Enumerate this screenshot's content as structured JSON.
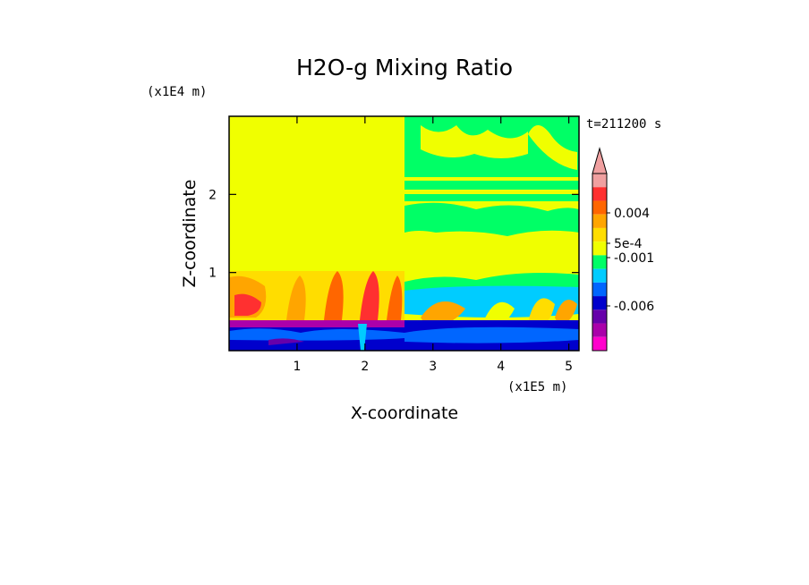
{
  "chart_data": {
    "type": "heatmap",
    "title": "H2O-g Mixing Ratio",
    "xlabel": "X-coordinate",
    "ylabel": "Z-coordinate",
    "x_scale_label": "(x1E5 m)",
    "y_scale_label": "(x1E4 m)",
    "time_label": "t=211200 s",
    "xlim": [
      0,
      5.15
    ],
    "ylim": [
      0,
      3.0
    ],
    "x_ticks": [
      "1",
      "2",
      "3",
      "4",
      "5"
    ],
    "x_tick_values": [
      1,
      2,
      3,
      4,
      5
    ],
    "y_ticks": [
      "1",
      "2"
    ],
    "y_tick_values": [
      1,
      2
    ],
    "colorbar": {
      "colors": [
        "#f0a0a0",
        "#ff3030",
        "#ff6600",
        "#ffa500",
        "#ffdd00",
        "#f0ff00",
        "#00ff66",
        "#00ccff",
        "#0066ff",
        "#0000cc",
        "#6600aa",
        "#aa00aa",
        "#ff00cc"
      ],
      "tick_labels": [
        {
          "label": "0.004",
          "value": 0.004
        },
        {
          "label": "5e-4",
          "value": 0.0005
        },
        {
          "label": "-0.001",
          "value": -0.001
        },
        {
          "label": "-0.006",
          "value": -0.006
        }
      ],
      "extend": "max"
    },
    "regions": [
      {
        "name": "upper-left",
        "x": [
          0,
          2.6
        ],
        "z": [
          1.0,
          3.0
        ],
        "color": "#f0ff00"
      },
      {
        "name": "upper-right-band",
        "x": [
          2.6,
          5.15
        ],
        "z": [
          1.6,
          2.3
        ],
        "color": "#00ff66"
      },
      {
        "name": "mid-right",
        "x": [
          2.6,
          5.15
        ],
        "z": [
          0.8,
          1.5
        ],
        "color": "#f0ff00"
      },
      {
        "name": "lower-left-warm",
        "x": [
          0,
          2.6
        ],
        "z": [
          0.4,
          1.0
        ],
        "color": "#ff6600"
      },
      {
        "name": "bottom-band",
        "x": [
          0,
          5.15
        ],
        "z": [
          0,
          0.4
        ],
        "color": "#0000cc"
      }
    ]
  }
}
